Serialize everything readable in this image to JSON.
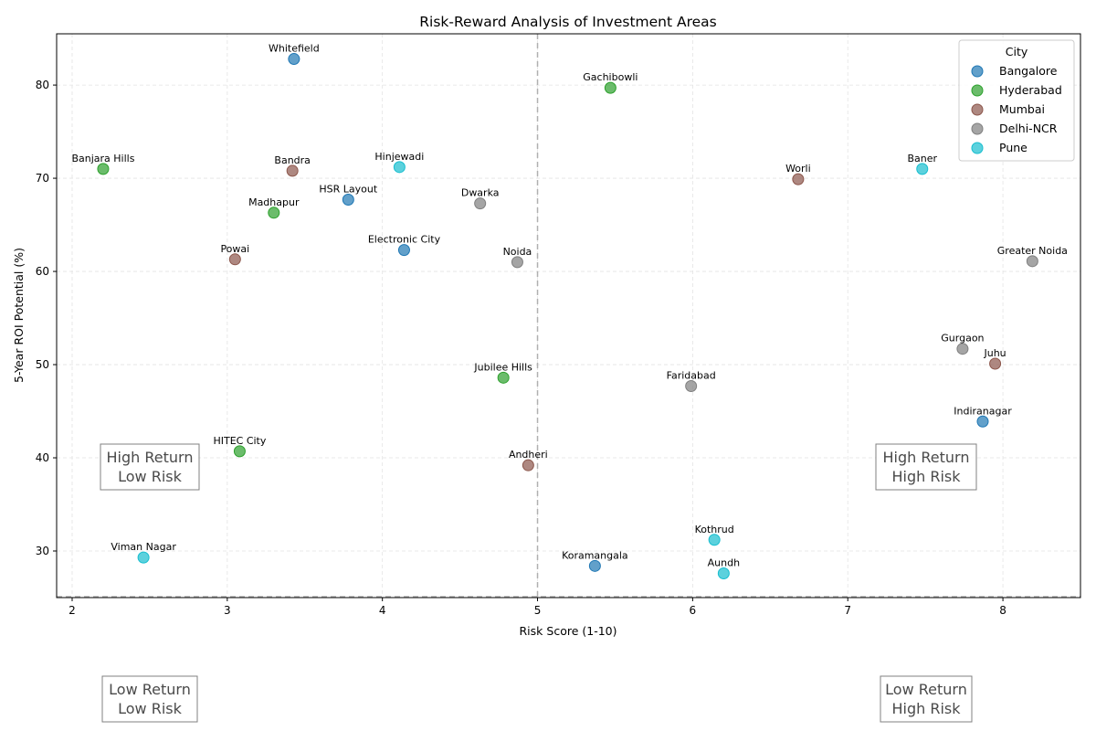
{
  "chart_data": {
    "type": "scatter",
    "title": "Risk-Reward Analysis of Investment Areas",
    "xlabel": "Risk Score (1-10)",
    "ylabel": "5-Year ROI Potential (%)",
    "xlim": [
      1.9,
      8.5
    ],
    "ylim": [
      25,
      85.5
    ],
    "xticks": [
      2,
      3,
      4,
      5,
      6,
      7,
      8
    ],
    "yticks": [
      30,
      40,
      50,
      60,
      70,
      80
    ],
    "grid": true,
    "reference_lines": {
      "x": 5,
      "y": 25
    },
    "legend": {
      "title": "City",
      "placement": "top-right"
    },
    "series": [
      {
        "name": "Bangalore",
        "color": "#1f77b4",
        "points": [
          {
            "label": "Whitefield",
            "x": 3.43,
            "y": 82.8
          },
          {
            "label": "HSR Layout",
            "x": 3.78,
            "y": 67.7
          },
          {
            "label": "Electronic City",
            "x": 4.14,
            "y": 62.3
          },
          {
            "label": "Koramangala",
            "x": 5.37,
            "y": 28.4
          },
          {
            "label": "Indiranagar",
            "x": 7.87,
            "y": 43.9
          }
        ]
      },
      {
        "name": "Hyderabad",
        "color": "#2ca02c",
        "points": [
          {
            "label": "Gachibowli",
            "x": 5.47,
            "y": 79.7
          },
          {
            "label": "Banjara Hills",
            "x": 2.2,
            "y": 71.0
          },
          {
            "label": "Madhapur",
            "x": 3.3,
            "y": 66.3
          },
          {
            "label": "Jubilee Hills",
            "x": 4.78,
            "y": 48.6
          },
          {
            "label": "HITEC City",
            "x": 3.08,
            "y": 40.7
          }
        ]
      },
      {
        "name": "Mumbai",
        "color": "#8c564b",
        "points": [
          {
            "label": "Bandra",
            "x": 3.42,
            "y": 70.8
          },
          {
            "label": "Worli",
            "x": 6.68,
            "y": 69.9
          },
          {
            "label": "Powai",
            "x": 3.05,
            "y": 61.3
          },
          {
            "label": "Juhu",
            "x": 7.95,
            "y": 50.1
          },
          {
            "label": "Andheri",
            "x": 4.94,
            "y": 39.2
          }
        ]
      },
      {
        "name": "Delhi-NCR",
        "color": "#7f7f7f",
        "points": [
          {
            "label": "Dwarka",
            "x": 4.63,
            "y": 67.3
          },
          {
            "label": "Noida",
            "x": 4.87,
            "y": 61.0
          },
          {
            "label": "Greater Noida",
            "x": 8.19,
            "y": 61.1
          },
          {
            "label": "Gurgaon",
            "x": 7.74,
            "y": 51.7
          },
          {
            "label": "Faridabad",
            "x": 5.99,
            "y": 47.7
          }
        ]
      },
      {
        "name": "Pune",
        "color": "#17becf",
        "points": [
          {
            "label": "Hinjewadi",
            "x": 4.11,
            "y": 71.2
          },
          {
            "label": "Baner",
            "x": 7.48,
            "y": 71.0
          },
          {
            "label": "Kothrud",
            "x": 6.14,
            "y": 31.2
          },
          {
            "label": "Aundh",
            "x": 6.2,
            "y": 27.6
          },
          {
            "label": "Viman Nagar",
            "x": 2.46,
            "y": 29.3
          }
        ]
      }
    ],
    "quadrant_boxes": [
      {
        "line1": "High Return",
        "line2": "Low Risk"
      },
      {
        "line1": "High Return",
        "line2": "High Risk"
      },
      {
        "line1": "Low Return",
        "line2": "Low Risk"
      },
      {
        "line1": "Low Return",
        "line2": "High Risk"
      }
    ]
  }
}
